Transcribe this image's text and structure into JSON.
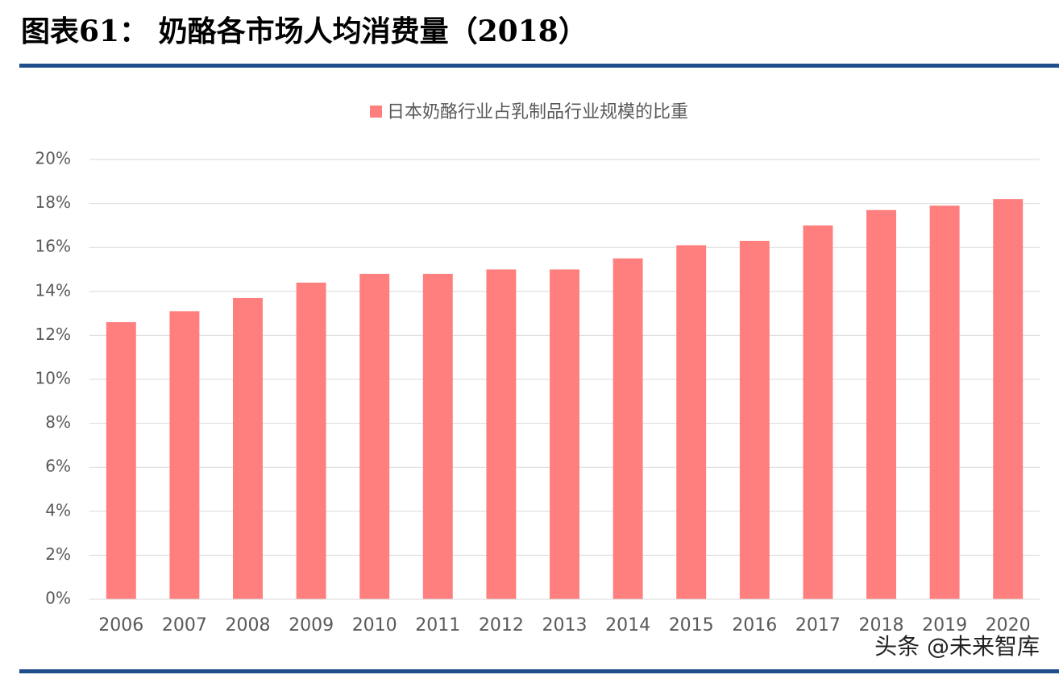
{
  "chart_data": {
    "type": "bar",
    "title": "图表61：  奶酪各市场人均消费量（2018）",
    "watermark": "头条 @未来智库",
    "categories": [
      "2006",
      "2007",
      "2008",
      "2009",
      "2010",
      "2011",
      "2012",
      "2013",
      "2014",
      "2015",
      "2016",
      "2017",
      "2018",
      "2019",
      "2020"
    ],
    "series": [
      {
        "name": "日本奶酪行业占乳制品行业规模的比重",
        "color": "#ff7f7f",
        "values": [
          12.6,
          13.1,
          13.7,
          14.4,
          14.8,
          14.8,
          15.0,
          15.0,
          15.5,
          16.1,
          16.3,
          17.0,
          17.7,
          17.9,
          18.2
        ]
      }
    ],
    "ylim": [
      0,
      20
    ],
    "yticks": [
      {
        "value": 0,
        "label": "0%"
      },
      {
        "value": 2,
        "label": "2%"
      },
      {
        "value": 4,
        "label": "4%"
      },
      {
        "value": 6,
        "label": "6%"
      },
      {
        "value": 8,
        "label": "8%"
      },
      {
        "value": 10,
        "label": "10%"
      },
      {
        "value": 12,
        "label": "12%"
      },
      {
        "value": 14,
        "label": "14%"
      },
      {
        "value": 16,
        "label": "16%"
      },
      {
        "value": 18,
        "label": "18%"
      },
      {
        "value": 20,
        "label": "20%"
      }
    ],
    "grid": true,
    "legend": "top"
  }
}
